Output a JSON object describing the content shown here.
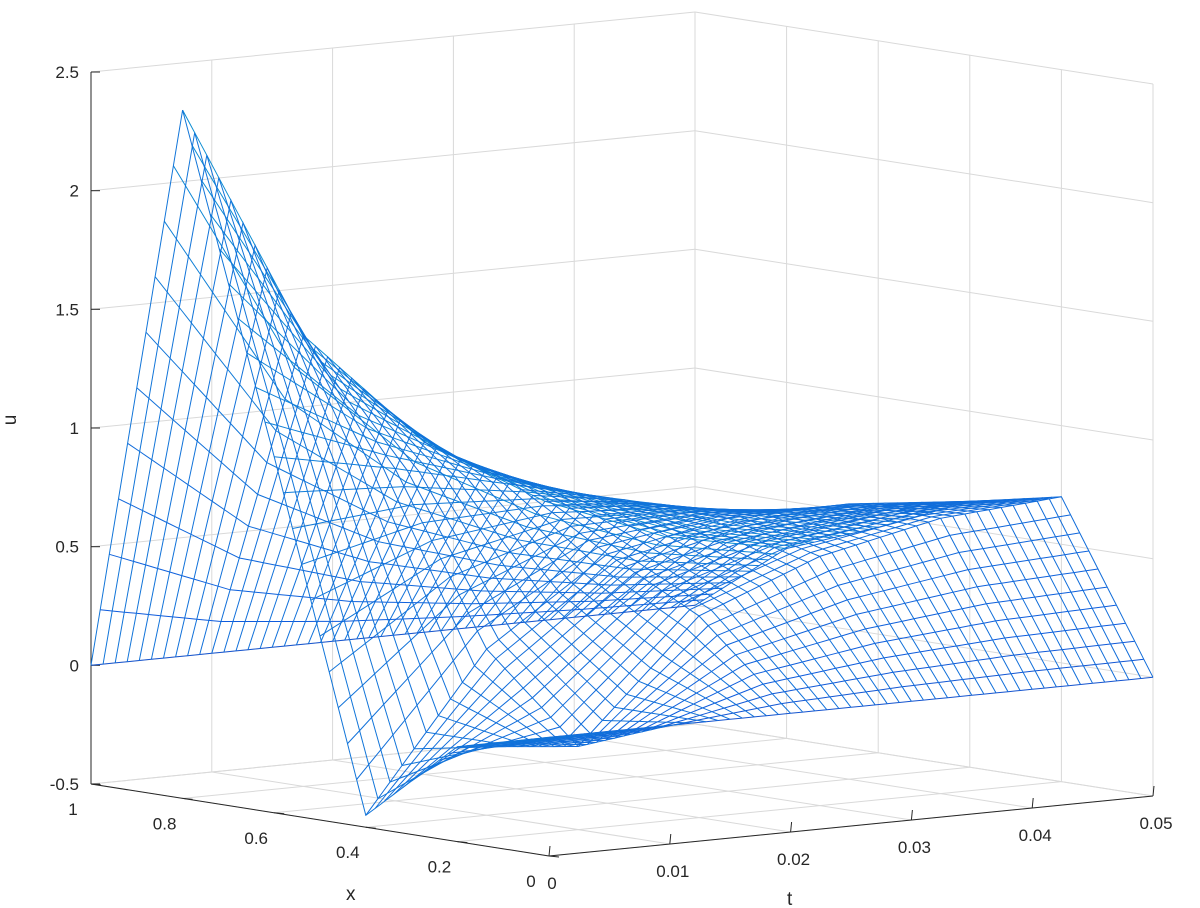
{
  "chart_data": {
    "type": "surface-mesh",
    "xlabel": "t",
    "ylabel": "x",
    "zlabel": "u",
    "tlim": [
      0,
      0.05
    ],
    "xlim": [
      0,
      1
    ],
    "ulim": [
      -0.5,
      2.5
    ],
    "t_ticks": [
      "0",
      "0.01",
      "0.02",
      "0.03",
      "0.04",
      "0.05"
    ],
    "x_ticks": [
      "0",
      "0.2",
      "0.4",
      "0.6",
      "0.8",
      "1"
    ],
    "u_ticks": [
      "-0.5",
      "0",
      "0.5",
      "1",
      "1.5",
      "2",
      "2.5"
    ],
    "grid": "on",
    "colormap": "parula",
    "surface_samples": {
      "t": [
        0,
        0.01,
        0.02,
        0.03,
        0.04,
        0.05
      ],
      "x": [
        0,
        0.2,
        0.4,
        0.6,
        0.8,
        1
      ],
      "u": [
        [
          0,
          0,
          0,
          0,
          0,
          0
        ],
        [
          -0.1,
          -0.15,
          0.35,
          0.55,
          0.66,
          0.7
        ],
        [
          -0.45,
          0.2,
          0.55,
          0.65,
          0.66,
          0.62
        ],
        [
          1.0,
          0.9,
          0.78,
          0.66,
          0.55,
          0.45
        ],
        [
          2.4,
          1.4,
          0.9,
          0.6,
          0.4,
          0.3
        ],
        [
          0,
          0,
          0,
          0,
          0,
          0
        ]
      ]
    }
  }
}
